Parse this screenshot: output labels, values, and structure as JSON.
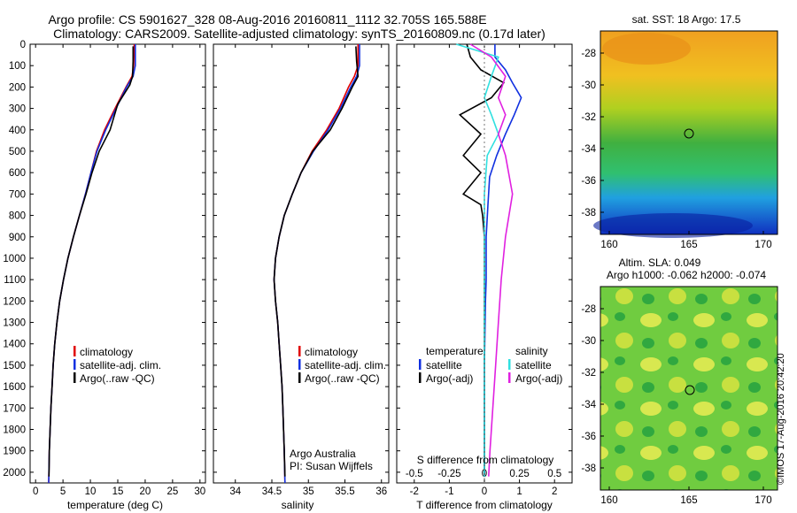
{
  "title_line1": "Argo profile: CS 5901627_328 08-Aug-2016 20160811_1112 32.705S 165.588E",
  "title_line2": "Climatology: CARS2009. Satellite-adjusted climatology: synTS_20160809.nc (0.17d later)",
  "depth_ticks": [
    "0",
    "100",
    "200",
    "300",
    "400",
    "500",
    "600",
    "700",
    "800",
    "900",
    "1000",
    "1100",
    "1200",
    "1300",
    "1400",
    "1500",
    "1600",
    "1700",
    "1800",
    "1900",
    "2000"
  ],
  "colors": {
    "climatology": "#e00000",
    "satellite": "#1030e0",
    "argo": "#000000",
    "sal_satellite": "#30e0e0",
    "sal_argo": "#e020e0"
  },
  "panel_temperature": {
    "xlabel": "temperature (deg C)",
    "xticks": [
      "0",
      "5",
      "10",
      "15",
      "20",
      "25",
      "30"
    ],
    "legend": [
      "climatology",
      "satellite-adj. clim.",
      "Argo(..raw -QC)"
    ]
  },
  "panel_salinity": {
    "xlabel": "salinity",
    "xticks": [
      "34",
      "34.5",
      "35",
      "35.5",
      "36"
    ],
    "legend": [
      "climatology",
      "satellite-adj. clim.",
      "Argo(..raw -QC)"
    ],
    "note_line1": "Argo Australia",
    "note_line2": "PI: Susan Wijffels"
  },
  "panel_difference": {
    "xlabel": "T difference from climatology",
    "top_xlabel": "S difference from climatology",
    "xticks_t": [
      "-2",
      "-1",
      "0",
      "1",
      "2"
    ],
    "xticks_s": [
      "-0.5",
      "-0.25",
      "0",
      "0.25",
      "0.5"
    ],
    "legend_temp_header": "temperature",
    "legend_sal_header": "salinity",
    "legend_temp": [
      "satellite",
      "Argo(-adj)"
    ],
    "legend_sal": [
      "satellite",
      "Argo(-adj)"
    ]
  },
  "map_sst": {
    "title": "sat. SST: 18 Argo: 17.5",
    "yticks": [
      "-28",
      "-30",
      "-32",
      "-34",
      "-36",
      "-38"
    ],
    "xticks": [
      "160",
      "165",
      "170"
    ]
  },
  "map_sla": {
    "title_line1": "Altim. SLA: 0.049",
    "title_line2": "Argo h1000: -0.062 h2000: -0.074",
    "yticks": [
      "-28",
      "-30",
      "-32",
      "-34",
      "-36",
      "-38"
    ],
    "xticks": [
      "160",
      "165",
      "170"
    ]
  },
  "stamp": "©IMOS 17-Aug-2016 20:42:20",
  "chart_data": [
    {
      "type": "line",
      "xlabel": "temperature (deg C)",
      "ylabel": "",
      "xlim": [
        -1,
        31
      ],
      "ylim": [
        2050,
        0
      ],
      "series": [
        {
          "name": "climatology",
          "x": [
            18.0,
            17.9,
            17.6,
            16.5,
            14.5,
            12.6,
            11.1,
            10.1,
            9.1,
            8.0,
            6.9,
            5.9,
            5.1,
            4.4,
            3.9,
            3.5,
            3.2,
            3.0,
            2.8,
            2.65,
            2.5,
            2.4
          ],
          "y": [
            0,
            100,
            150,
            200,
            300,
            400,
            500,
            600,
            700,
            800,
            900,
            1000,
            1100,
            1200,
            1300,
            1400,
            1500,
            1600,
            1700,
            1800,
            1900,
            2050
          ]
        },
        {
          "name": "satellite-adj. clim.",
          "x": [
            18.2,
            18.2,
            17.8,
            16.6,
            14.7,
            12.8,
            11.2,
            10.1,
            9.1,
            8.0,
            6.9,
            5.9,
            5.1,
            4.4,
            3.9,
            3.5,
            3.2,
            3.0,
            2.8,
            2.65,
            2.5,
            2.4
          ],
          "y": [
            0,
            100,
            150,
            200,
            300,
            400,
            500,
            600,
            700,
            800,
            900,
            1000,
            1100,
            1200,
            1300,
            1400,
            1500,
            1600,
            1700,
            1800,
            1900,
            2050
          ]
        },
        {
          "name": "Argo(..raw -QC)",
          "x": [
            17.8,
            17.8,
            17.7,
            17.2,
            15.0,
            13.6,
            11.6,
            10.3,
            9.2,
            8.0,
            6.9,
            5.9,
            5.1,
            4.4,
            3.9,
            3.5,
            3.2,
            3.0,
            2.8,
            2.65,
            2.5,
            2.45
          ],
          "y": [
            10,
            80,
            150,
            190,
            280,
            400,
            500,
            600,
            700,
            800,
            900,
            1000,
            1100,
            1200,
            1300,
            1400,
            1500,
            1600,
            1700,
            1800,
            1900,
            2020
          ]
        }
      ]
    },
    {
      "type": "line",
      "xlabel": "salinity",
      "xlim": [
        33.7,
        36.1
      ],
      "ylim": [
        2050,
        0
      ],
      "series": [
        {
          "name": "climatology",
          "x": [
            35.68,
            35.68,
            35.63,
            35.55,
            35.42,
            35.25,
            35.05,
            34.9,
            34.78,
            34.67,
            34.6,
            34.55,
            34.53,
            34.55,
            34.58,
            34.6,
            34.62,
            34.64,
            34.65,
            34.66,
            34.67,
            34.68
          ],
          "y": [
            0,
            100,
            150,
            200,
            300,
            400,
            500,
            600,
            700,
            800,
            900,
            1000,
            1100,
            1200,
            1300,
            1400,
            1500,
            1600,
            1700,
            1800,
            1900,
            2050
          ]
        },
        {
          "name": "satellite-adj. clim.",
          "x": [
            35.7,
            35.7,
            35.66,
            35.58,
            35.44,
            35.27,
            35.07,
            34.9,
            34.78,
            34.67,
            34.6,
            34.55,
            34.53,
            34.55,
            34.58,
            34.6,
            34.62,
            34.64,
            34.65,
            34.66,
            34.67,
            34.68
          ],
          "y": [
            0,
            100,
            150,
            200,
            300,
            400,
            500,
            600,
            700,
            800,
            900,
            1000,
            1100,
            1200,
            1300,
            1400,
            1500,
            1600,
            1700,
            1800,
            1900,
            2050
          ]
        },
        {
          "name": "Argo(..raw -QC)",
          "x": [
            35.65,
            35.66,
            35.68,
            35.6,
            35.46,
            35.3,
            35.06,
            34.9,
            34.78,
            34.67,
            34.6,
            34.55,
            34.53,
            34.55,
            34.58,
            34.6,
            34.62,
            34.64,
            34.65,
            34.66,
            34.67,
            34.68
          ],
          "y": [
            10,
            80,
            150,
            200,
            300,
            400,
            500,
            600,
            700,
            800,
            900,
            1000,
            1100,
            1200,
            1300,
            1400,
            1500,
            1600,
            1700,
            1800,
            1900,
            2020
          ]
        }
      ]
    },
    {
      "type": "line",
      "xlabel": "T difference from climatology",
      "top_xlabel": "S difference from climatology",
      "xlim": [
        -2.5,
        2.5
      ],
      "ylim": [
        2050,
        0
      ],
      "series": [
        {
          "name": "satellite",
          "x": [
            0.3,
            0.3,
            0.6,
            0.8,
            1.05,
            0.85,
            0.6,
            0.35,
            0.15,
            0.1,
            0.05,
            0.05,
            0.05,
            0.03,
            0.02,
            0.01,
            0.0,
            0.0,
            0.0,
            0.0,
            0.0,
            0.0
          ],
          "y": [
            0,
            60,
            120,
            180,
            250,
            330,
            420,
            520,
            620,
            750,
            900,
            1000,
            1100,
            1200,
            1300,
            1400,
            1500,
            1600,
            1700,
            1800,
            1900,
            2020
          ]
        },
        {
          "name": "Argo(-adj)",
          "x": [
            -0.5,
            -0.4,
            -0.1,
            0.55,
            0.2,
            -0.7,
            -0.1,
            -0.6,
            -0.1,
            -0.6,
            -0.1,
            -0.05,
            0.0,
            0.0,
            0.0,
            0.0,
            0.0,
            0.0,
            0.0,
            0.0,
            0.0,
            0.0
          ],
          "y": [
            0,
            60,
            120,
            180,
            250,
            330,
            420,
            520,
            600,
            700,
            750,
            800,
            900,
            1000,
            1200,
            1400,
            1600,
            1800,
            1900,
            1950,
            2000,
            2020
          ]
        },
        {
          "name": "salinity satellite",
          "x": [
            -0.2,
            0.1,
            0.05,
            0.0,
            0.05,
            0.1,
            0.02,
            0.0,
            0.0,
            0.0,
            0.0,
            0.0,
            0.0,
            0.0,
            0.0
          ],
          "y": [
            0,
            60,
            150,
            250,
            330,
            420,
            520,
            700,
            900,
            1100,
            1300,
            1500,
            1700,
            1900,
            2020
          ]
        },
        {
          "name": "salinity Argo(-adj)",
          "x": [
            -0.1,
            0.05,
            0.15,
            0.1,
            0.15,
            0.1,
            0.15,
            0.2,
            0.15,
            0.12,
            0.1,
            0.08,
            0.06,
            0.04,
            0.03
          ],
          "y": [
            0,
            60,
            150,
            250,
            330,
            420,
            520,
            700,
            900,
            1100,
            1300,
            1500,
            1700,
            1900,
            2020
          ]
        }
      ]
    }
  ]
}
